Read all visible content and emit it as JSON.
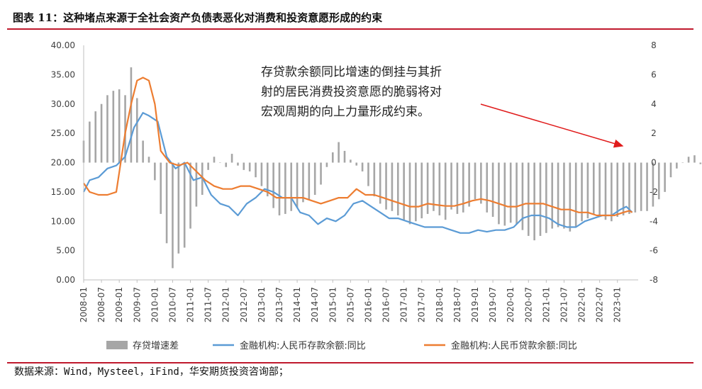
{
  "figure": {
    "title": "图表 11：这种堵点来源于全社会资产负债表恶化对消费和投资意愿形成的约束",
    "source": "数据来源：Wind，Mysteel，iFind，华安期货投资咨询部；"
  },
  "chart_data": {
    "type": "bar+line",
    "x_tick_labels": [
      "2008-01",
      "2008-07",
      "2009-01",
      "2009-07",
      "2010-01",
      "2010-07",
      "2011-01",
      "2011-07",
      "2012-01",
      "2012-07",
      "2013-01",
      "2013-07",
      "2014-01",
      "2014-07",
      "2015-01",
      "2015-07",
      "2016-01",
      "2016-07",
      "2017-01",
      "2017-07",
      "2018-01",
      "2018-07",
      "2019-01",
      "2019-07",
      "2020-01",
      "2020-07",
      "2021-01",
      "2021-07",
      "2022-01",
      "2022-07",
      "2023-01"
    ],
    "y_left": {
      "min": 0,
      "max": 40,
      "ticks": [
        "0.00",
        "5.00",
        "10.00",
        "15.00",
        "20.00",
        "25.00",
        "30.00",
        "35.00",
        "40.00"
      ]
    },
    "y_right": {
      "min": -8,
      "max": 8,
      "ticks": [
        "-8",
        "-6",
        "-4",
        "-2",
        "0",
        "2",
        "4",
        "6",
        "8"
      ]
    },
    "grid": false,
    "legend_position": "bottom",
    "annotation": {
      "lines": [
        "存贷款余额同比增速的倒挂与其折",
        "射的居民消费投资意愿的脆弱将对",
        "宏观周期的向上力量形成约束。"
      ]
    },
    "series": [
      {
        "name": "存贷增速差",
        "kind": "bar",
        "axis": "right",
        "color": "#a6a6a6",
        "x_start": "2008-01",
        "step_months": 2,
        "values": [
          1.5,
          2.8,
          3.5,
          4.0,
          4.6,
          4.9,
          5.0,
          4.6,
          6.5,
          4.4,
          1.5,
          0.4,
          -1.2,
          -3.5,
          -5.5,
          -7.2,
          -6.2,
          -5.8,
          -4.5,
          -3.0,
          -2.2,
          -0.5,
          0.4,
          0.0,
          -0.3,
          0.6,
          -0.2,
          -0.5,
          -0.6,
          -1.0,
          -1.6,
          -2.3,
          -3.1,
          -3.6,
          -3.5,
          -3.3,
          -3.1,
          -2.7,
          -2.5,
          -2.2,
          -1.5,
          -0.3,
          0.7,
          1.4,
          0.8,
          0.2,
          -0.2,
          -0.6,
          -1.6,
          -2.3,
          -2.8,
          -3.2,
          -3.3,
          -3.6,
          -3.9,
          -4.2,
          -4.0,
          -3.8,
          -3.5,
          -3.3,
          -3.6,
          -3.9,
          -3.2,
          -3.5,
          -3.4,
          -3.0,
          -2.5,
          -2.8,
          -3.4,
          -3.7,
          -4.2,
          -4.3,
          -4.1,
          -4.2,
          -4.6,
          -5.0,
          -5.3,
          -5.0,
          -4.8,
          -4.5,
          -4.4,
          -4.5,
          -4.7,
          -4.4,
          -4.0,
          -3.8,
          -3.5,
          -3.7,
          -3.9,
          -4.0,
          -3.7,
          -3.6,
          -3.5,
          -3.4,
          -3.3,
          -3.3,
          -3.0,
          -2.5,
          -2.0,
          -1.0,
          -0.4,
          0.0,
          0.4,
          0.5,
          -0.1,
          0.6,
          1.0,
          1.0,
          0.6
        ]
      },
      {
        "name": "金融机构:人民币存款余额:同比",
        "kind": "line",
        "axis": "left",
        "color": "#5b9bd5",
        "points": [
          [
            "2008-01",
            15.0
          ],
          [
            "2008-03",
            17.0
          ],
          [
            "2008-06",
            17.5
          ],
          [
            "2008-09",
            19.0
          ],
          [
            "2008-12",
            19.5
          ],
          [
            "2009-03",
            21.0
          ],
          [
            "2009-06",
            26.0
          ],
          [
            "2009-09",
            28.5
          ],
          [
            "2009-11",
            28.0
          ],
          [
            "2010-02",
            27.0
          ],
          [
            "2010-05",
            21.0
          ],
          [
            "2010-08",
            19.0
          ],
          [
            "2010-11",
            20.0
          ],
          [
            "2011-02",
            17.0
          ],
          [
            "2011-05",
            17.5
          ],
          [
            "2011-08",
            14.5
          ],
          [
            "2011-11",
            13.0
          ],
          [
            "2012-02",
            12.5
          ],
          [
            "2012-05",
            11.0
          ],
          [
            "2012-08",
            13.0
          ],
          [
            "2012-11",
            14.0
          ],
          [
            "2013-02",
            15.5
          ],
          [
            "2013-05",
            15.0
          ],
          [
            "2013-08",
            14.0
          ],
          [
            "2013-11",
            14.0
          ],
          [
            "2014-02",
            11.5
          ],
          [
            "2014-05",
            11.0
          ],
          [
            "2014-08",
            9.5
          ],
          [
            "2014-11",
            10.5
          ],
          [
            "2015-02",
            10.0
          ],
          [
            "2015-05",
            11.0
          ],
          [
            "2015-08",
            13.0
          ],
          [
            "2015-11",
            13.5
          ],
          [
            "2016-02",
            12.5
          ],
          [
            "2016-05",
            11.5
          ],
          [
            "2016-08",
            10.5
          ],
          [
            "2016-11",
            10.5
          ],
          [
            "2017-02",
            10.0
          ],
          [
            "2017-05",
            9.5
          ],
          [
            "2017-08",
            9.0
          ],
          [
            "2017-11",
            9.0
          ],
          [
            "2018-02",
            9.0
          ],
          [
            "2018-05",
            8.5
          ],
          [
            "2018-08",
            8.0
          ],
          [
            "2018-11",
            8.0
          ],
          [
            "2019-02",
            8.5
          ],
          [
            "2019-05",
            8.2
          ],
          [
            "2019-08",
            8.5
          ],
          [
            "2019-11",
            8.5
          ],
          [
            "2020-02",
            9.0
          ],
          [
            "2020-05",
            10.5
          ],
          [
            "2020-08",
            11.0
          ],
          [
            "2020-11",
            11.0
          ],
          [
            "2021-02",
            10.5
          ],
          [
            "2021-05",
            9.5
          ],
          [
            "2021-08",
            9.0
          ],
          [
            "2021-11",
            9.0
          ],
          [
            "2022-02",
            10.0
          ],
          [
            "2022-05",
            10.5
          ],
          [
            "2022-08",
            11.0
          ],
          [
            "2022-11",
            11.0
          ],
          [
            "2023-02",
            12.0
          ],
          [
            "2023-04",
            12.5
          ],
          [
            "2023-06",
            11.5
          ]
        ]
      },
      {
        "name": "金融机构:人民币贷款余额:同比",
        "kind": "line",
        "axis": "left",
        "color": "#ed7d31",
        "points": [
          [
            "2008-01",
            16.5
          ],
          [
            "2008-03",
            15.0
          ],
          [
            "2008-06",
            14.5
          ],
          [
            "2008-09",
            14.5
          ],
          [
            "2008-12",
            15.0
          ],
          [
            "2009-03",
            25.0
          ],
          [
            "2009-05",
            30.0
          ],
          [
            "2009-07",
            34.0
          ],
          [
            "2009-09",
            34.5
          ],
          [
            "2009-11",
            34.0
          ],
          [
            "2010-01",
            30.0
          ],
          [
            "2010-03",
            22.0
          ],
          [
            "2010-06",
            20.0
          ],
          [
            "2010-09",
            19.5
          ],
          [
            "2010-12",
            20.0
          ],
          [
            "2011-03",
            18.5
          ],
          [
            "2011-06",
            17.0
          ],
          [
            "2011-09",
            16.0
          ],
          [
            "2011-12",
            15.5
          ],
          [
            "2012-03",
            15.5
          ],
          [
            "2012-06",
            16.0
          ],
          [
            "2012-09",
            16.0
          ],
          [
            "2012-12",
            15.5
          ],
          [
            "2013-03",
            15.0
          ],
          [
            "2013-06",
            14.0
          ],
          [
            "2013-09",
            14.0
          ],
          [
            "2013-12",
            14.0
          ],
          [
            "2014-03",
            14.0
          ],
          [
            "2014-06",
            13.5
          ],
          [
            "2014-09",
            13.0
          ],
          [
            "2014-12",
            13.5
          ],
          [
            "2015-03",
            14.0
          ],
          [
            "2015-06",
            14.0
          ],
          [
            "2015-09",
            15.5
          ],
          [
            "2015-12",
            14.5
          ],
          [
            "2016-03",
            14.5
          ],
          [
            "2016-06",
            14.0
          ],
          [
            "2016-09",
            13.5
          ],
          [
            "2016-12",
            13.0
          ],
          [
            "2017-03",
            12.5
          ],
          [
            "2017-06",
            12.5
          ],
          [
            "2017-09",
            13.0
          ],
          [
            "2017-12",
            12.8
          ],
          [
            "2018-03",
            12.6
          ],
          [
            "2018-06",
            12.6
          ],
          [
            "2018-09",
            13.0
          ],
          [
            "2018-12",
            13.5
          ],
          [
            "2019-03",
            13.8
          ],
          [
            "2019-06",
            13.5
          ],
          [
            "2019-09",
            13.0
          ],
          [
            "2019-12",
            12.5
          ],
          [
            "2020-03",
            12.5
          ],
          [
            "2020-06",
            13.0
          ],
          [
            "2020-09",
            13.0
          ],
          [
            "2020-12",
            13.0
          ],
          [
            "2021-03",
            12.5
          ],
          [
            "2021-06",
            12.0
          ],
          [
            "2021-09",
            12.0
          ],
          [
            "2021-12",
            11.5
          ],
          [
            "2022-03",
            11.5
          ],
          [
            "2022-06",
            11.0
          ],
          [
            "2022-09",
            11.0
          ],
          [
            "2022-12",
            11.0
          ],
          [
            "2023-03",
            11.5
          ],
          [
            "2023-05",
            11.8
          ],
          [
            "2023-06",
            11.5
          ]
        ]
      }
    ]
  },
  "colors": {
    "accent": "#c0192d",
    "bar": "#a6a6a6",
    "line_deposit": "#5b9bd5",
    "line_loan": "#ed7d31",
    "arrow": "#e01b1b"
  }
}
